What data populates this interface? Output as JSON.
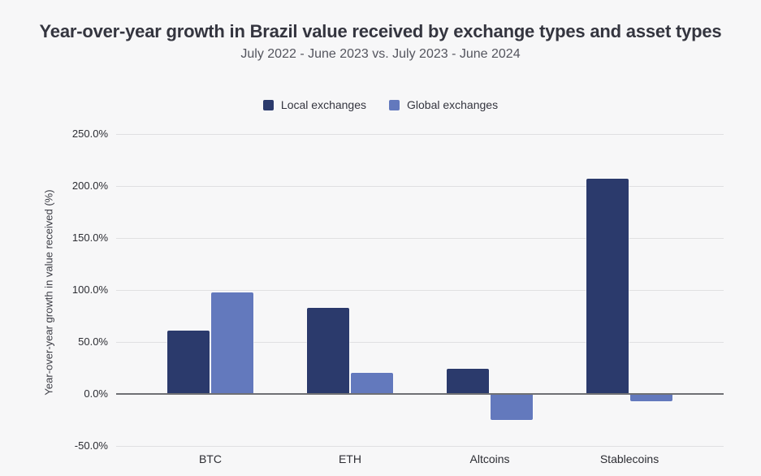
{
  "chart_data": {
    "type": "bar",
    "title": "Year-over-year growth in Brazil value received by exchange types and asset types",
    "subtitle": "July 2022 - June 2023 vs. July 2023 - June 2024",
    "ylabel": "Year-over-year growth in value received (%)",
    "categories": [
      "BTC",
      "ETH",
      "Altcoins",
      "Stablecoins"
    ],
    "series": [
      {
        "name": "Local exchanges",
        "color": "#2b3a6c",
        "values": [
          61,
          83,
          24,
          207
        ]
      },
      {
        "name": "Global exchanges",
        "color": "#6379bd",
        "values": [
          98,
          20,
          -25,
          -7
        ]
      }
    ],
    "ylim": [
      -50,
      250
    ],
    "yticks": [
      {
        "label": "250.0%",
        "value": 250
      },
      {
        "label": "200.0%",
        "value": 200
      },
      {
        "label": "150.0%",
        "value": 150
      },
      {
        "label": "100.0%",
        "value": 100
      },
      {
        "label": "50.0%",
        "value": 50
      },
      {
        "label": "0.0%",
        "value": 0
      },
      {
        "label": "-50.0%",
        "value": -50
      }
    ],
    "grid": true,
    "legend_position": "top-center"
  },
  "colors": {
    "background": "#f7f7f8",
    "gridline": "#e0e0e2",
    "zero_line": "#6f7074",
    "title_text": "#34353f",
    "subtitle_text": "#54555e",
    "tick_text": "#2c2d33"
  }
}
